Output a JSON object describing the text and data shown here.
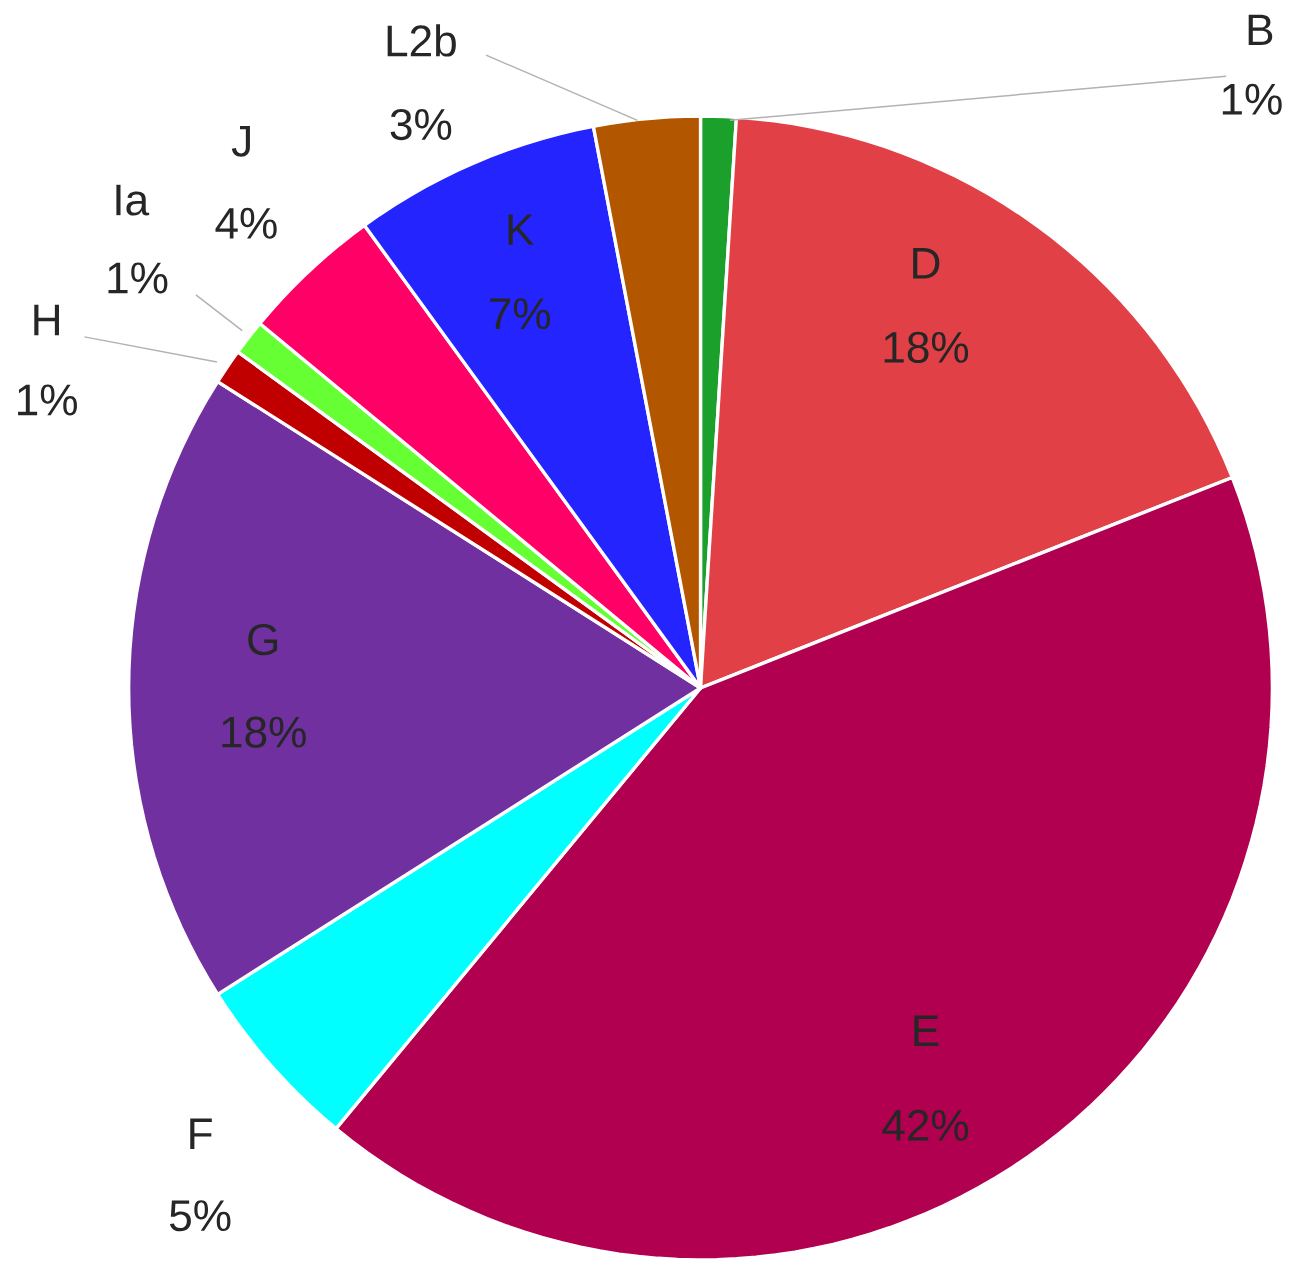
{
  "chart_data": {
    "type": "pie",
    "categories": [
      "B",
      "D",
      "E",
      "F",
      "G",
      "H",
      "Ia",
      "J",
      "K",
      "L2b"
    ],
    "values": [
      1,
      18,
      42,
      5,
      18,
      1,
      1,
      4,
      7,
      3
    ],
    "value_labels": [
      "1%",
      "18%",
      "42%",
      "5%",
      "18%",
      "1%",
      "1%",
      "4%",
      "7%",
      "3%"
    ],
    "colors": [
      "#1ca02c",
      "#e04046",
      "#b0004f",
      "#00ffff",
      "#7030a0",
      "#c00000",
      "#66ff33",
      "#ff0066",
      "#2424ff",
      "#b35600"
    ]
  }
}
